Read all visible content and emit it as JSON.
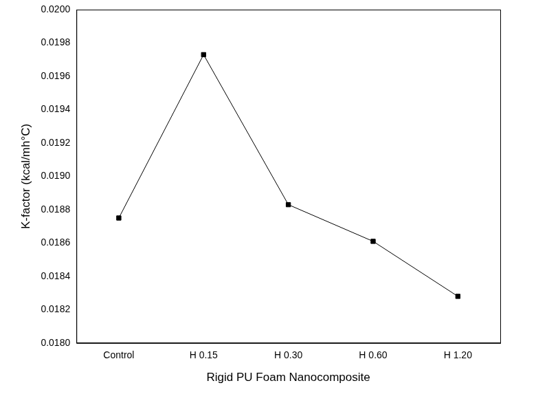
{
  "chart_data": {
    "type": "line",
    "x_label": "Rigid PU Foam Nanocomposite",
    "y_label": "K-factor (kcal/mh°C)",
    "categories": [
      "Control",
      "H 0.15",
      "H 0.30",
      "H 0.60",
      "H 1.20"
    ],
    "values": [
      0.01875,
      0.01973,
      0.01883,
      0.01861,
      0.01828
    ],
    "color": "#000000",
    "marker": "square",
    "line_style": "solid",
    "ylim": [
      0.018,
      0.02
    ],
    "yticks": [
      {
        "value": 0.018,
        "label": "0.0180"
      },
      0.0182,
      0.0184,
      0.0186,
      0.0188,
      {
        "value": 0.019,
        "label": "0.0190"
      },
      0.0192,
      0.0194,
      0.0196,
      0.0198,
      {
        "value": 0.02,
        "label": "0.0200"
      }
    ],
    "grid": false,
    "legend": "none"
  }
}
